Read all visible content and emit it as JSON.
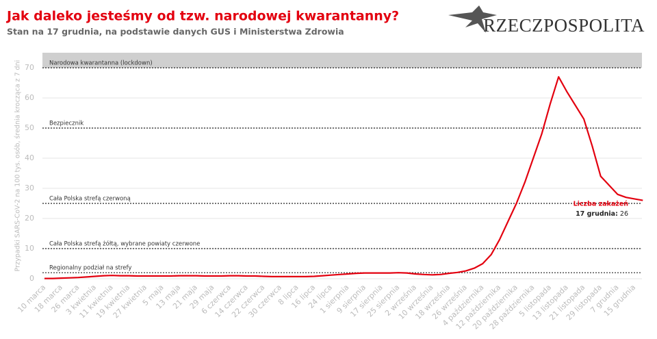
{
  "header": {
    "logo": "RZECZPOSPOLITA"
  },
  "chart_data": {
    "type": "line",
    "title": "Jak daleko jesteśmy od tzw. narodowej kwarantanny?",
    "subtitle": "Stan na 17 grudnia, na podstawie danych GUS i Ministerstwa Zdrowia",
    "y_label": "Przypadki SARS-CoV-2 na 100 tys. osób, średnia krocząca z 7 dni",
    "categories": [
      "10 marca",
      null,
      "18 marca",
      null,
      "26 marca",
      null,
      "3 kwietnia",
      null,
      "11 kwietnia",
      null,
      "19 kwietnia",
      null,
      "27 kwietnia",
      null,
      "5 maja",
      null,
      "13 maja",
      null,
      "21 maja",
      null,
      "29 maja",
      null,
      "6 czerwca",
      null,
      "14 czerwca",
      null,
      "22 czerwca",
      null,
      "30 czerwca",
      null,
      "8 lipca",
      null,
      "16 lipca",
      null,
      "24 lipca",
      null,
      "1 sierpnia",
      null,
      "9 sierpnia",
      null,
      "17 sierpnia",
      null,
      "25 sierpnia",
      null,
      "2 września",
      null,
      "10 września",
      null,
      "18 września",
      null,
      "26 września",
      null,
      "4 października",
      null,
      "12 października",
      null,
      "20 października",
      null,
      "28 października",
      null,
      "5 listopada",
      null,
      "13 listopada",
      null,
      "21 listopada",
      null,
      "29 listopada",
      null,
      "7 grudnia",
      null,
      "15 grudnia",
      null
    ],
    "series": [
      {
        "name": "Liczba zakażeń",
        "color": "#e3000f",
        "values": [
          0.1,
          0.1,
          0.2,
          0.3,
          0.4,
          0.6,
          0.8,
          1.0,
          1.1,
          1.0,
          1.0,
          0.9,
          0.9,
          0.9,
          0.9,
          0.9,
          1.0,
          1.0,
          1.0,
          0.9,
          0.9,
          0.9,
          1.0,
          1.0,
          0.9,
          0.9,
          0.8,
          0.7,
          0.7,
          0.7,
          0.7,
          0.7,
          0.8,
          1.0,
          1.2,
          1.4,
          1.6,
          1.8,
          1.9,
          1.9,
          1.9,
          1.9,
          2.0,
          1.9,
          1.6,
          1.4,
          1.3,
          1.4,
          1.8,
          2.1,
          2.6,
          3.5,
          5.0,
          8,
          13,
          19,
          25,
          32,
          40,
          48,
          58,
          67,
          62,
          57.5,
          53,
          44,
          34,
          31,
          28,
          27,
          26.5,
          26
        ]
      }
    ],
    "annotation_date": "17 grudnia:",
    "ylim": [
      0,
      75
    ],
    "yticks": [
      0,
      10,
      20,
      30,
      40,
      50,
      60,
      70
    ],
    "grid": true,
    "reference_lines": [
      {
        "value": 70,
        "label": "Narodowa kwarantanna (lockdown)"
      },
      {
        "value": 50,
        "label": "Bezpiecznik"
      },
      {
        "value": 25,
        "label": "Cała Polska strefą czerwoną"
      },
      {
        "value": 10,
        "label": "Cała Polska strefą żółtą, wybrane powiaty czerwone"
      },
      {
        "value": 2,
        "label": "Regionalny podział na strefy"
      }
    ]
  }
}
